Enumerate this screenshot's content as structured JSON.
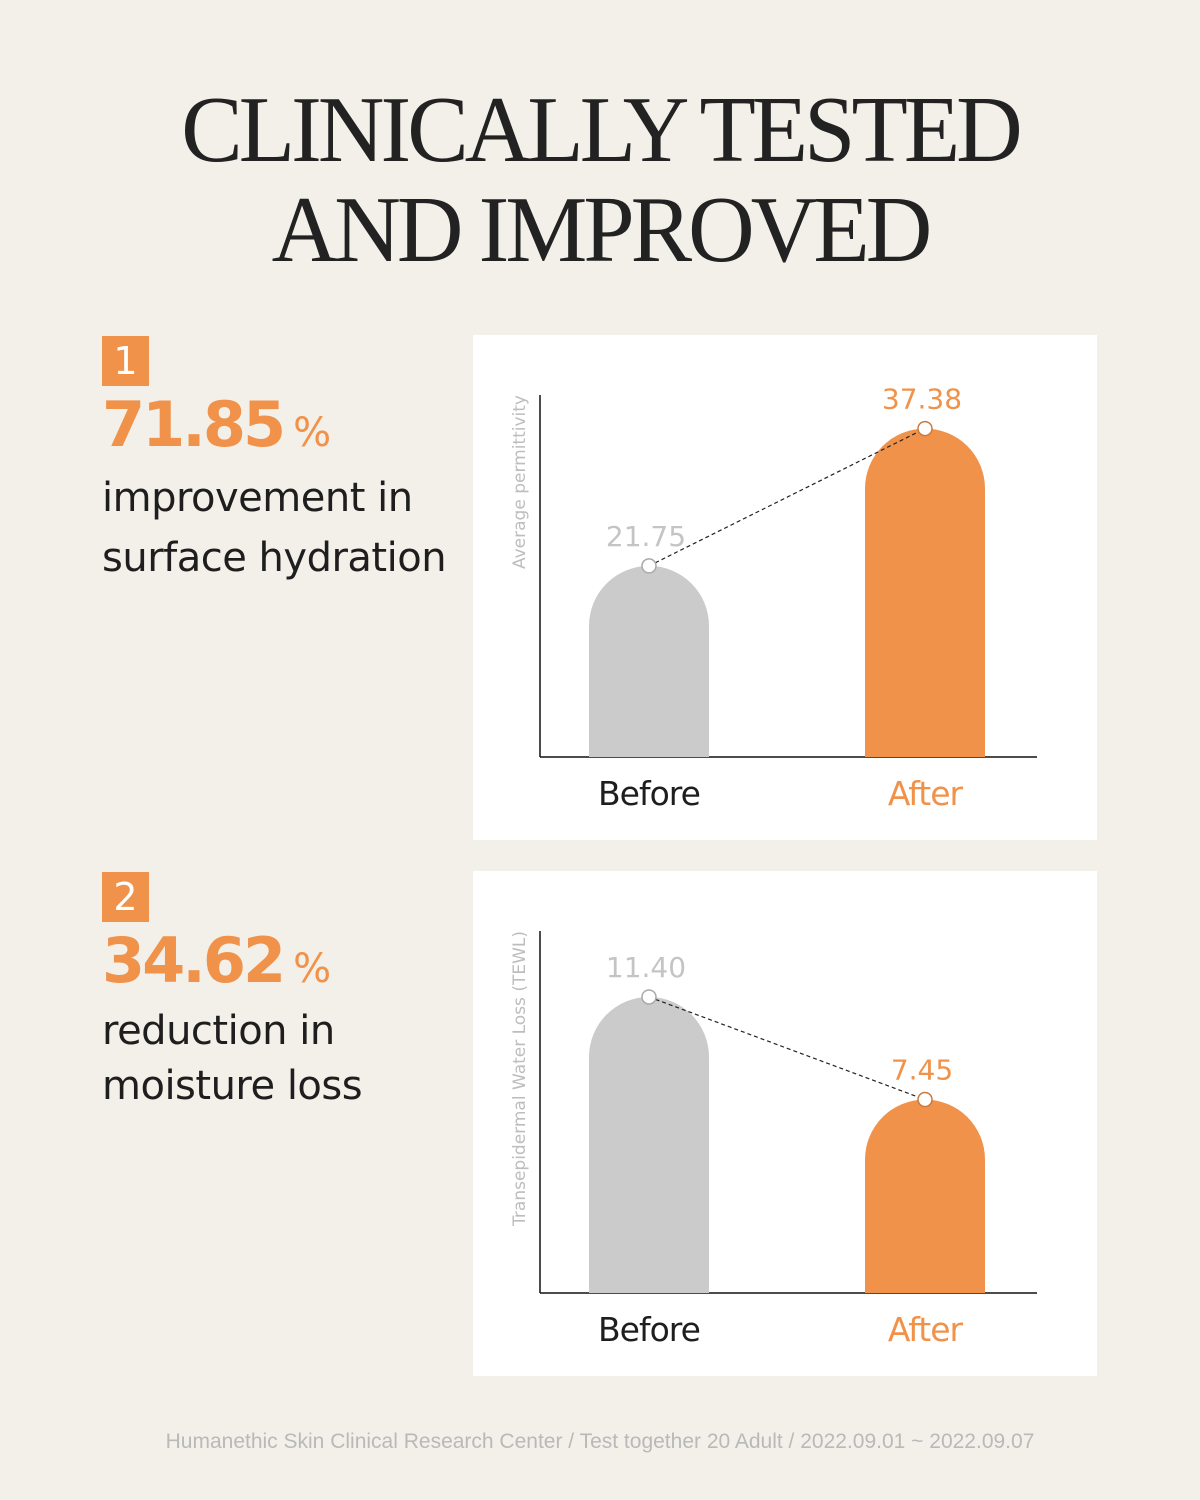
{
  "title": {
    "line1": "CLINICALLY TESTED",
    "line2": "AND IMPROVED"
  },
  "stats": [
    {
      "badge": "1",
      "value": "71.85",
      "unit": "%",
      "line1": "improvement in",
      "line2": "surface hydration"
    },
    {
      "badge": "2",
      "value": "34.62",
      "unit": "%",
      "line1": "reduction in",
      "line2": "moisture loss"
    }
  ],
  "colors": {
    "before": "#cbcbcb",
    "after": "#f0924a",
    "before_label": "#c4c4c4",
    "after_label": "#f0924a"
  },
  "chart_data": [
    {
      "type": "bar",
      "ylabel": "Average permittivity",
      "categories": [
        "Before",
        "After"
      ],
      "values": [
        21.75,
        37.38
      ],
      "value_labels": [
        "21.75",
        "37.38"
      ],
      "ylim": [
        0,
        41.2
      ],
      "connector": "dashed"
    },
    {
      "type": "bar",
      "ylabel": "Transepidermal Water Loss (TEWL)",
      "categories": [
        "Before",
        "After"
      ],
      "values": [
        11.4,
        7.45
      ],
      "value_labels": [
        "11.40",
        "7.45"
      ],
      "ylim": [
        0,
        13.94
      ],
      "connector": "dashed"
    }
  ],
  "footer": "Humanethic Skin Clinical Research Center / Test together 20 Adult / 2022.09.01 ~ 2022.09.07"
}
